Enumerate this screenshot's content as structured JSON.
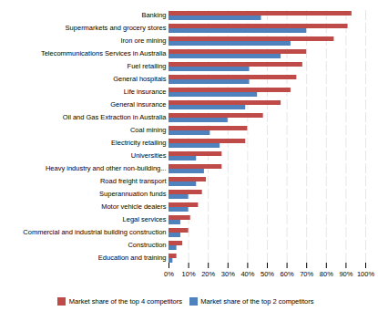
{
  "chart_data": {
    "type": "bar",
    "orientation": "horizontal",
    "categories": [
      "Banking",
      "Supermarkets and grocery stores",
      "Iron ore mining",
      "Telecommunications Services in Australia",
      "Fuel retailing",
      "General hospitals",
      "Life insurance",
      "General insurance",
      "Oil and Gas Extraction in Australia",
      "Coal mining",
      "Electricity retailing",
      "Universities",
      "Heavy industry and other non-building...",
      "Road freight transport",
      "Superannuation funds",
      "Motor vehicle dealers",
      "Legal services",
      "Commercial and industrial building construction",
      "Construction",
      "Education and training"
    ],
    "series": [
      {
        "name": "Market share of the top 4 competitors",
        "color": "#BE4B48",
        "values": [
          0.93,
          0.91,
          0.84,
          0.7,
          0.68,
          0.65,
          0.62,
          0.57,
          0.48,
          0.4,
          0.39,
          0.27,
          0.27,
          0.19,
          0.17,
          0.15,
          0.11,
          0.1,
          0.07,
          0.04
        ]
      },
      {
        "name": "Market share of the top 2 competitors",
        "color": "#4F81BD",
        "values": [
          0.47,
          0.7,
          0.62,
          0.57,
          0.41,
          0.41,
          0.45,
          0.39,
          0.3,
          0.21,
          0.26,
          0.14,
          0.18,
          0.14,
          0.1,
          0.1,
          0.06,
          0.06,
          0.04,
          0.02
        ]
      }
    ],
    "xlim": [
      0,
      1.0
    ],
    "xticks": [
      {
        "value": 0.0,
        "label": "0%"
      },
      {
        "value": 0.1,
        "label": "10%"
      },
      {
        "value": 0.2,
        "label": "20%"
      },
      {
        "value": 0.3,
        "label": "30%"
      },
      {
        "value": 0.4,
        "label": "40%"
      },
      {
        "value": 0.5,
        "label": "50%"
      },
      {
        "value": 0.6,
        "label": "60%"
      },
      {
        "value": 0.7,
        "label": "70%"
      },
      {
        "value": 0.8,
        "label": "80%"
      },
      {
        "value": 0.9,
        "label": "90%"
      },
      {
        "value": 1.0,
        "label": "100%"
      }
    ],
    "grid": true,
    "legend": "bottom"
  }
}
